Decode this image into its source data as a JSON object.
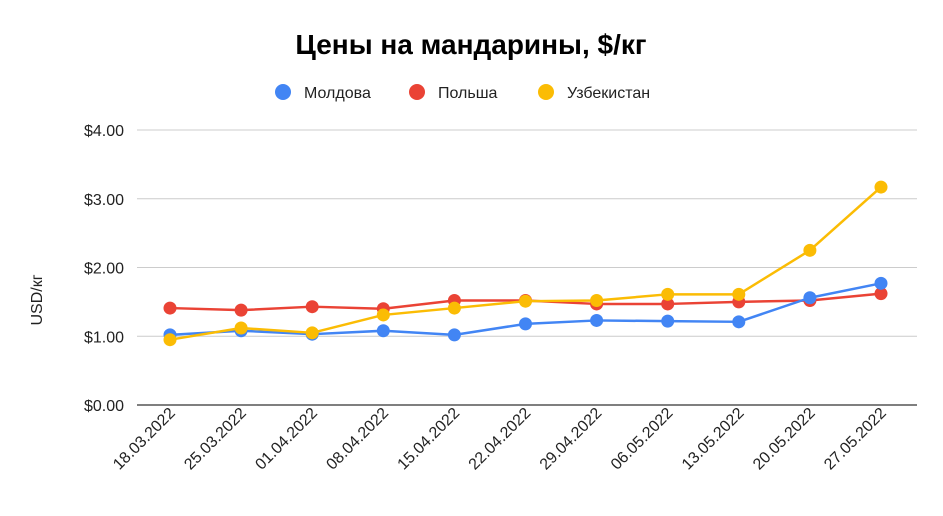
{
  "chart_data": {
    "type": "line",
    "title": "Цены на мандарины, $/кг",
    "xlabel": "",
    "ylabel": "USD/кг",
    "ylim": [
      0,
      4
    ],
    "yticks": [
      "$0.00",
      "$1.00",
      "$2.00",
      "$3.00",
      "$4.00"
    ],
    "ytick_values": [
      0,
      1,
      2,
      3,
      4
    ],
    "grid": true,
    "legend_position": "top",
    "categories": [
      "18.03.2022",
      "25.03.2022",
      "01.04.2022",
      "08.04.2022",
      "15.04.2022",
      "22.04.2022",
      "29.04.2022",
      "06.05.2022",
      "13.05.2022",
      "20.05.2022",
      "27.05.2022"
    ],
    "series": [
      {
        "name": "Польша",
        "color": "#EA4335",
        "values": [
          1.41,
          1.38,
          1.43,
          1.4,
          1.52,
          1.52,
          1.47,
          1.47,
          1.5,
          1.52,
          1.62
        ]
      },
      {
        "name": "Молдова",
        "color": "#4285F4",
        "values": [
          1.02,
          1.08,
          1.03,
          1.08,
          1.02,
          1.18,
          1.23,
          1.22,
          1.21,
          1.56,
          1.77
        ]
      },
      {
        "name": "Узбекистан",
        "color": "#FBBC04",
        "values": [
          0.95,
          1.12,
          1.05,
          1.31,
          1.41,
          1.51,
          1.52,
          1.61,
          1.61,
          2.25,
          3.17
        ]
      }
    ],
    "legend_order": [
      "Молдова",
      "Польша",
      "Узбекистан"
    ]
  }
}
